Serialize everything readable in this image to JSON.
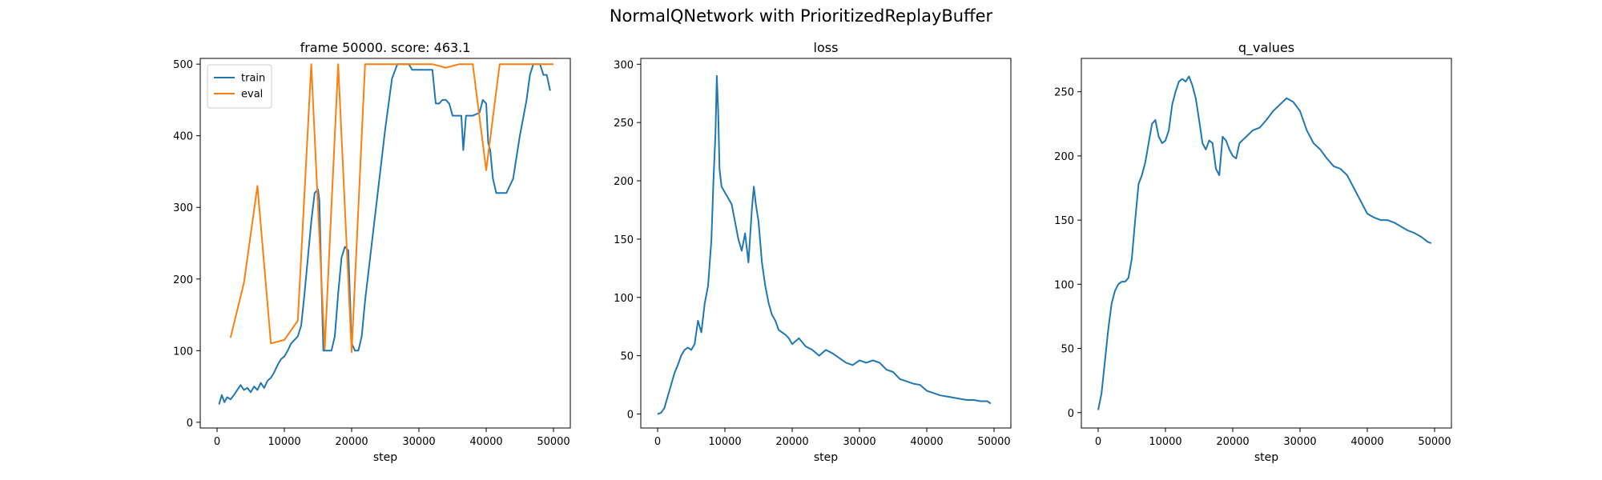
{
  "figure_title": "NormalQNetwork with PrioritizedReplayBuffer",
  "colors": {
    "train": "#1f77b4",
    "eval": "#ff7f0e",
    "loss": "#1f77b4",
    "q_values": "#1f77b4"
  },
  "chart_data": [
    {
      "type": "line",
      "title": "frame 50000. score: 463.1",
      "xlabel": "step",
      "ylabel": "",
      "xlim": [
        -2500,
        52500
      ],
      "ylim": [
        -8,
        508
      ],
      "xticks": [
        0,
        10000,
        20000,
        30000,
        40000,
        50000
      ],
      "yticks": [
        0,
        100,
        200,
        300,
        400,
        500
      ],
      "legend": {
        "position": "top-left",
        "entries": [
          "train",
          "eval"
        ]
      },
      "grid": false,
      "series": [
        {
          "name": "train",
          "color": "#1f77b4",
          "x": [
            300,
            700,
            1100,
            1500,
            2000,
            2500,
            3000,
            3500,
            4000,
            4500,
            5000,
            5500,
            6000,
            6500,
            7000,
            7500,
            8000,
            8500,
            9000,
            9500,
            10000,
            10500,
            11000,
            11500,
            12000,
            12500,
            13000,
            13500,
            14000,
            14500,
            15000,
            15200,
            15500,
            15800,
            16100,
            16500,
            17000,
            17500,
            18000,
            18500,
            19000,
            19500,
            20000,
            20500,
            21000,
            21500,
            22000,
            23000,
            24000,
            25000,
            26000,
            26800,
            27500,
            28000,
            28500,
            29000,
            30000,
            31000,
            32000,
            32500,
            33000,
            33500,
            34000,
            34500,
            35000,
            35500,
            36000,
            36300,
            36600,
            37000,
            38000,
            39000,
            39500,
            40000,
            40300,
            40600,
            41000,
            41500,
            42000,
            43000,
            44000,
            45000,
            46000,
            46500,
            47000,
            47500,
            48000,
            48500,
            49000,
            49500
          ],
          "y": [
            25,
            38,
            28,
            35,
            32,
            38,
            45,
            52,
            45,
            48,
            42,
            50,
            45,
            55,
            48,
            58,
            62,
            70,
            80,
            88,
            92,
            100,
            110,
            115,
            120,
            135,
            180,
            230,
            280,
            320,
            325,
            310,
            200,
            100,
            100,
            100,
            100,
            120,
            180,
            230,
            245,
            240,
            110,
            100,
            100,
            120,
            170,
            250,
            330,
            410,
            480,
            500,
            500,
            500,
            500,
            492,
            492,
            492,
            492,
            445,
            445,
            450,
            450,
            445,
            428,
            428,
            428,
            428,
            380,
            428,
            428,
            432,
            450,
            445,
            390,
            380,
            340,
            320,
            320,
            320,
            340,
            400,
            450,
            485,
            500,
            500,
            500,
            485,
            485,
            463
          ]
        },
        {
          "name": "eval",
          "color": "#ff7f0e",
          "x": [
            2000,
            4000,
            6000,
            8000,
            10000,
            12000,
            14000,
            16000,
            18000,
            20000,
            22000,
            24000,
            26000,
            28000,
            30000,
            32000,
            34000,
            36000,
            38000,
            40000,
            42000,
            44000,
            46000,
            48000,
            50000
          ],
          "y": [
            118,
            195,
            330,
            110,
            115,
            142,
            500,
            102,
            500,
            98,
            500,
            500,
            500,
            500,
            500,
            500,
            495,
            500,
            500,
            352,
            500,
            500,
            500,
            500,
            500
          ]
        }
      ]
    },
    {
      "type": "line",
      "title": "loss",
      "xlabel": "step",
      "ylabel": "",
      "xlim": [
        -2500,
        52500
      ],
      "ylim": [
        -12,
        305
      ],
      "xticks": [
        0,
        10000,
        20000,
        30000,
        40000,
        50000
      ],
      "yticks": [
        0,
        50,
        100,
        150,
        200,
        250,
        300
      ],
      "grid": false,
      "series": [
        {
          "name": "",
          "color": "#1f77b4",
          "x": [
            0,
            500,
            1000,
            1500,
            2000,
            2500,
            3000,
            3500,
            4000,
            4500,
            5000,
            5500,
            6000,
            6500,
            7000,
            7500,
            8000,
            8300,
            8600,
            8800,
            9000,
            9200,
            9500,
            10000,
            10500,
            11000,
            11500,
            12000,
            12500,
            13000,
            13500,
            14000,
            14300,
            14600,
            15000,
            15500,
            16000,
            16500,
            17000,
            17500,
            18000,
            18500,
            19000,
            19500,
            20000,
            21000,
            22000,
            23000,
            24000,
            25000,
            26000,
            27000,
            28000,
            29000,
            30000,
            31000,
            32000,
            33000,
            34000,
            35000,
            36000,
            37000,
            38000,
            39000,
            40000,
            41000,
            42000,
            43000,
            44000,
            45000,
            46000,
            47000,
            48000,
            49000,
            49500
          ],
          "y": [
            0,
            1,
            5,
            15,
            25,
            35,
            42,
            50,
            55,
            57,
            55,
            60,
            80,
            70,
            95,
            110,
            150,
            200,
            240,
            290,
            260,
            210,
            195,
            190,
            185,
            180,
            165,
            150,
            140,
            155,
            130,
            175,
            195,
            180,
            165,
            130,
            110,
            95,
            85,
            80,
            72,
            70,
            68,
            65,
            60,
            65,
            58,
            55,
            50,
            55,
            52,
            48,
            44,
            42,
            46,
            44,
            46,
            44,
            38,
            36,
            30,
            28,
            26,
            25,
            20,
            18,
            16,
            15,
            14,
            13,
            12,
            12,
            11,
            11,
            9
          ]
        }
      ]
    },
    {
      "type": "line",
      "title": "q_values",
      "xlabel": "step",
      "ylabel": "",
      "xlim": [
        -2500,
        52500
      ],
      "ylim": [
        -12,
        276
      ],
      "xticks": [
        0,
        10000,
        20000,
        30000,
        40000,
        50000
      ],
      "yticks": [
        0,
        50,
        100,
        150,
        200,
        250
      ],
      "grid": false,
      "series": [
        {
          "name": "",
          "color": "#1f77b4",
          "x": [
            0,
            500,
            1000,
            1500,
            2000,
            2500,
            3000,
            3500,
            4000,
            4500,
            5000,
            5500,
            6000,
            6500,
            7000,
            7500,
            8000,
            8500,
            9000,
            9500,
            10000,
            10500,
            11000,
            11500,
            12000,
            12500,
            13000,
            13500,
            14000,
            14500,
            15000,
            15500,
            16000,
            16500,
            17000,
            17500,
            18000,
            18500,
            19000,
            19500,
            20000,
            20500,
            21000,
            22000,
            23000,
            24000,
            25000,
            26000,
            27000,
            28000,
            29000,
            30000,
            31000,
            32000,
            33000,
            34000,
            35000,
            36000,
            37000,
            38000,
            39000,
            40000,
            41000,
            42000,
            43000,
            44000,
            45000,
            46000,
            47000,
            48000,
            49000,
            49500
          ],
          "y": [
            2,
            15,
            40,
            65,
            85,
            95,
            100,
            102,
            102,
            105,
            120,
            150,
            178,
            185,
            195,
            210,
            225,
            228,
            215,
            210,
            212,
            220,
            240,
            250,
            258,
            260,
            258,
            262,
            255,
            245,
            228,
            210,
            205,
            212,
            210,
            190,
            185,
            215,
            212,
            205,
            200,
            198,
            210,
            215,
            220,
            222,
            228,
            235,
            240,
            245,
            242,
            235,
            220,
            210,
            205,
            198,
            192,
            190,
            185,
            175,
            165,
            155,
            152,
            150,
            150,
            148,
            145,
            142,
            140,
            137,
            133,
            132
          ]
        }
      ]
    }
  ]
}
